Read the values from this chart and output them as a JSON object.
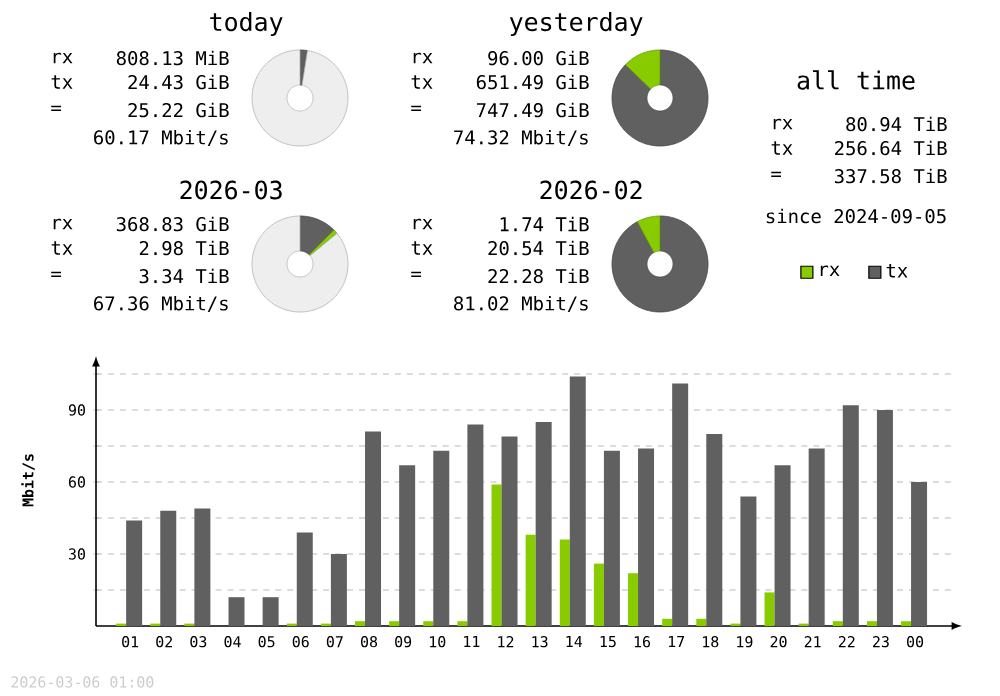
{
  "chart_data": [
    {
      "type": "donut",
      "title": "today",
      "categories": [
        null,
        null
      ],
      "values": [
        2.5,
        97.5
      ],
      "colors": [
        "#606060",
        "#eeeeee"
      ],
      "annotations": [
        "rx",
        "808.13 MiB",
        "tx",
        "24.43 GiB",
        "=",
        "25.22 GiB",
        "60.17 Mbit/s"
      ]
    },
    {
      "type": "donut",
      "title": "yesterday",
      "categories": [
        null,
        null
      ],
      "values": [
        87.2,
        12.8
      ],
      "colors": [
        "#606060",
        "#88cc00"
      ],
      "annotations": [
        "rx",
        "96.00 GiB",
        "tx",
        "651.49 GiB",
        "=",
        "747.49 GiB",
        "74.32 Mbit/s"
      ]
    },
    {
      "type": "other",
      "title": "all time",
      "annotations": [
        "rx",
        "80.94 TiB",
        "tx",
        "256.64 TiB",
        "=",
        "337.58 TiB",
        "since 2024-09-05"
      ]
    },
    {
      "type": "donut",
      "title": "2026-03",
      "categories": [
        null,
        null,
        null
      ],
      "values": [
        12.5,
        1.5,
        86
      ],
      "colors": [
        "#606060",
        "#88cc00",
        "#eeeeee"
      ],
      "annotations": [
        "rx",
        "368.83 GiB",
        "tx",
        "2.98 TiB",
        "=",
        "3.34 TiB",
        "67.36 Mbit/s"
      ]
    },
    {
      "type": "donut",
      "title": "2026-02",
      "categories": [
        null,
        null
      ],
      "values": [
        92.2,
        7.8
      ],
      "colors": [
        "#606060",
        "#88cc00"
      ],
      "annotations": [
        "rx",
        "1.74 TiB",
        "tx",
        "20.54 TiB",
        "=",
        "22.28 TiB",
        "81.02 Mbit/s"
      ]
    },
    {
      "type": "bar",
      "ylabel": "Mbit/s",
      "categories": [
        "01",
        "02",
        "03",
        "04",
        "05",
        "06",
        "07",
        "08",
        "09",
        "10",
        "11",
        "12",
        "13",
        "14",
        "15",
        "16",
        "17",
        "18",
        "19",
        "20",
        "21",
        "22",
        "23",
        "00"
      ],
      "series": [
        {
          "name": "rx",
          "color": "#88cc00",
          "values": [
            1,
            1,
            1,
            0,
            0,
            1,
            1,
            2,
            2,
            2,
            2,
            59,
            38,
            36,
            26,
            22,
            3,
            3,
            1,
            14,
            1,
            2,
            2,
            2
          ]
        },
        {
          "name": "tx",
          "color": "#606060",
          "values": [
            44,
            48,
            49,
            12,
            12,
            39,
            30,
            81,
            67,
            73,
            84,
            79,
            85,
            104,
            73,
            74,
            101,
            80,
            54,
            67,
            74,
            92,
            90,
            60
          ]
        }
      ],
      "ylim": [
        0,
        110
      ],
      "yticks": [
        {
          "value": 15,
          "label": null
        },
        30,
        {
          "value": 45,
          "label": null
        },
        60,
        {
          "value": 75,
          "label": null
        },
        90,
        {
          "value": 105,
          "label": null
        }
      ],
      "grid": "y",
      "legend": "top right",
      "annotations": [
        "2026-03-06 01:00"
      ]
    }
  ]
}
